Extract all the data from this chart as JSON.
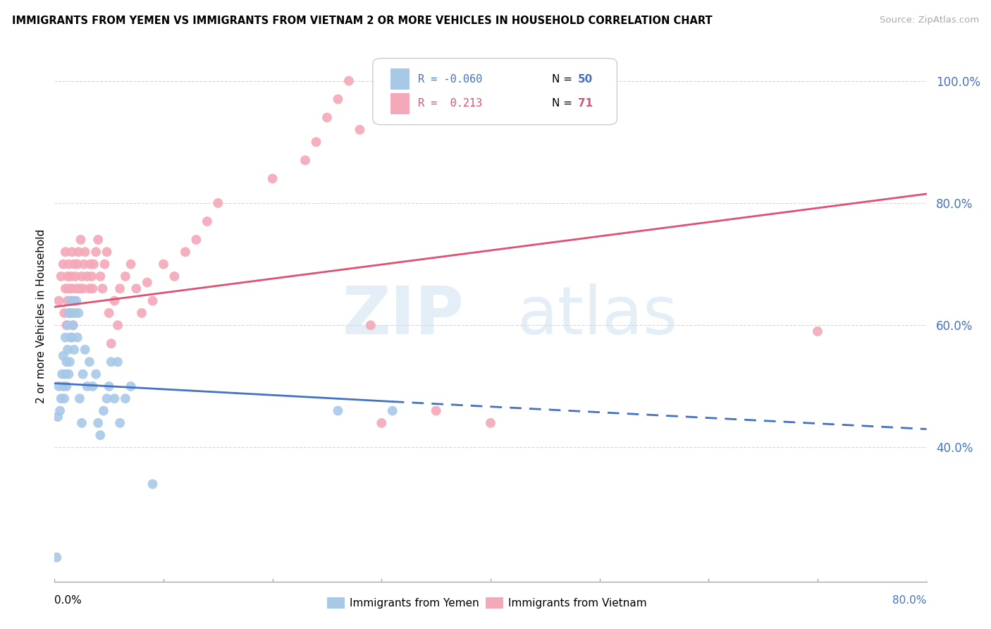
{
  "title": "IMMIGRANTS FROM YEMEN VS IMMIGRANTS FROM VIETNAM 2 OR MORE VEHICLES IN HOUSEHOLD CORRELATION CHART",
  "source": "Source: ZipAtlas.com",
  "ylabel": "2 or more Vehicles in Household",
  "xlim": [
    0.0,
    0.8
  ],
  "ylim": [
    0.18,
    1.05
  ],
  "color_yemen": "#a8c8e8",
  "color_vietnam": "#f4a8b8",
  "color_line_yemen": "#4472c4",
  "color_line_vietnam": "#e05070",
  "watermark_zip": "ZIP",
  "watermark_atlas": "atlas",
  "background_color": "#ffffff",
  "grid_color": "#cccccc",
  "yemen_x": [
    0.002,
    0.003,
    0.004,
    0.005,
    0.006,
    0.007,
    0.008,
    0.008,
    0.009,
    0.01,
    0.01,
    0.011,
    0.011,
    0.012,
    0.012,
    0.013,
    0.013,
    0.014,
    0.015,
    0.015,
    0.016,
    0.016,
    0.017,
    0.018,
    0.019,
    0.02,
    0.021,
    0.022,
    0.023,
    0.025,
    0.026,
    0.028,
    0.03,
    0.032,
    0.035,
    0.038,
    0.04,
    0.042,
    0.045,
    0.048,
    0.05,
    0.052,
    0.055,
    0.058,
    0.06,
    0.065,
    0.07,
    0.09,
    0.26,
    0.31
  ],
  "yemen_y": [
    0.22,
    0.45,
    0.5,
    0.46,
    0.48,
    0.52,
    0.5,
    0.55,
    0.48,
    0.52,
    0.58,
    0.5,
    0.54,
    0.56,
    0.6,
    0.52,
    0.62,
    0.54,
    0.58,
    0.64,
    0.58,
    0.62,
    0.6,
    0.56,
    0.62,
    0.64,
    0.58,
    0.62,
    0.48,
    0.44,
    0.52,
    0.56,
    0.5,
    0.54,
    0.5,
    0.52,
    0.44,
    0.42,
    0.46,
    0.48,
    0.5,
    0.54,
    0.48,
    0.54,
    0.44,
    0.48,
    0.5,
    0.34,
    0.46,
    0.46
  ],
  "vietnam_x": [
    0.004,
    0.006,
    0.008,
    0.009,
    0.01,
    0.01,
    0.011,
    0.012,
    0.012,
    0.013,
    0.013,
    0.014,
    0.015,
    0.015,
    0.016,
    0.016,
    0.017,
    0.018,
    0.018,
    0.019,
    0.02,
    0.021,
    0.022,
    0.023,
    0.024,
    0.025,
    0.026,
    0.027,
    0.028,
    0.03,
    0.032,
    0.033,
    0.034,
    0.035,
    0.036,
    0.038,
    0.04,
    0.042,
    0.044,
    0.046,
    0.048,
    0.05,
    0.052,
    0.055,
    0.058,
    0.06,
    0.065,
    0.07,
    0.075,
    0.08,
    0.085,
    0.09,
    0.1,
    0.11,
    0.12,
    0.13,
    0.14,
    0.15,
    0.2,
    0.23,
    0.24,
    0.25,
    0.26,
    0.27,
    0.28,
    0.29,
    0.3,
    0.35,
    0.4,
    0.7
  ],
  "vietnam_y": [
    0.64,
    0.68,
    0.7,
    0.62,
    0.66,
    0.72,
    0.6,
    0.64,
    0.68,
    0.66,
    0.7,
    0.62,
    0.64,
    0.68,
    0.66,
    0.72,
    0.6,
    0.64,
    0.7,
    0.68,
    0.66,
    0.7,
    0.72,
    0.66,
    0.74,
    0.68,
    0.66,
    0.7,
    0.72,
    0.68,
    0.66,
    0.7,
    0.68,
    0.66,
    0.7,
    0.72,
    0.74,
    0.68,
    0.66,
    0.7,
    0.72,
    0.62,
    0.57,
    0.64,
    0.6,
    0.66,
    0.68,
    0.7,
    0.66,
    0.62,
    0.67,
    0.64,
    0.7,
    0.68,
    0.72,
    0.74,
    0.77,
    0.8,
    0.84,
    0.87,
    0.9,
    0.94,
    0.97,
    1.0,
    0.92,
    0.6,
    0.44,
    0.46,
    0.44,
    0.59
  ],
  "yemen_line_x0": 0.0,
  "yemen_line_x_solid_end": 0.31,
  "yemen_line_x1": 0.8,
  "yemen_line_y0": 0.505,
  "yemen_line_y_solid_end": 0.475,
  "yemen_line_y1": 0.43,
  "vietnam_line_x0": 0.0,
  "vietnam_line_x1": 0.8,
  "vietnam_line_y0": 0.63,
  "vietnam_line_y1": 0.815,
  "ytick_vals": [
    0.4,
    0.6,
    0.8,
    1.0
  ],
  "ytick_labels": [
    "40.0%",
    "60.0%",
    "80.0%",
    "100.0%"
  ]
}
